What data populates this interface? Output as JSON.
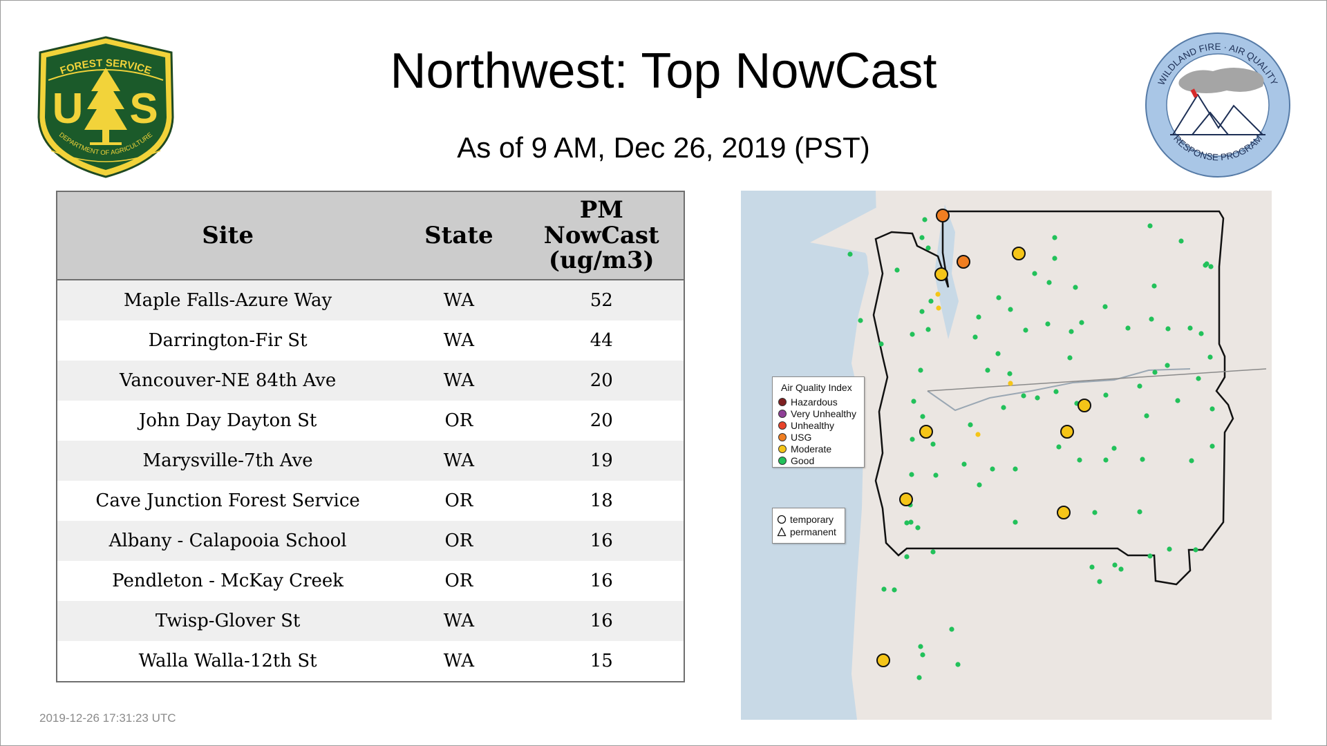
{
  "title": "Northwest: Top NowCast",
  "subtitle": "As of  9 AM, Dec 26, 2019 (PST)",
  "timestamp": "2019-12-26 17:31:23 UTC",
  "logos": {
    "usfs": {
      "top_text": "FOREST SERVICE",
      "letters_left": "U",
      "letters_right": "S",
      "bottom_text": "DEPARTMENT OF AGRICULTURE"
    },
    "wfaq": {
      "top_text": "WILDLAND FIRE · AIR QUALITY",
      "bottom_text": "RESPONSE PROGRAM"
    }
  },
  "table": {
    "headers": {
      "site": "Site",
      "state": "State",
      "value_line1": "PM",
      "value_line2": "NowCast",
      "value_line3": "(ug/m3)"
    },
    "rows": [
      {
        "site": "Maple Falls-Azure Way",
        "state": "WA",
        "value": "52"
      },
      {
        "site": "Darrington-Fir St",
        "state": "WA",
        "value": "44"
      },
      {
        "site": "Vancouver-NE 84th Ave",
        "state": "WA",
        "value": "20"
      },
      {
        "site": "John Day Dayton St",
        "state": "OR",
        "value": "20"
      },
      {
        "site": "Marysville-7th Ave",
        "state": "WA",
        "value": "19"
      },
      {
        "site": "Cave Junction Forest Service",
        "state": "OR",
        "value": "18"
      },
      {
        "site": "Albany - Calapooia School",
        "state": "OR",
        "value": "16"
      },
      {
        "site": "Pendleton - McKay Creek",
        "state": "OR",
        "value": "16"
      },
      {
        "site": "Twisp-Glover St",
        "state": "WA",
        "value": "16"
      },
      {
        "site": "Walla Walla-12th St",
        "state": "WA",
        "value": "15"
      }
    ]
  },
  "map": {
    "legend": {
      "title": "Air Quality Index",
      "categories": [
        {
          "label": "Hazardous",
          "color": "#7e2020"
        },
        {
          "label": "Very Unhealthy",
          "color": "#8f3f97"
        },
        {
          "label": "Unhealthy",
          "color": "#e8432a"
        },
        {
          "label": "USG",
          "color": "#f07e21"
        },
        {
          "label": "Moderate",
          "color": "#f5c518"
        },
        {
          "label": "Good",
          "color": "#22c15a"
        }
      ],
      "marker_types": [
        {
          "label": "temporary",
          "shape": "circle"
        },
        {
          "label": "permanent",
          "shape": "triangle"
        }
      ]
    },
    "colors": {
      "ocean": "#c8d9e6",
      "land": "#ebe6e2",
      "region_outline": "#111111"
    }
  }
}
